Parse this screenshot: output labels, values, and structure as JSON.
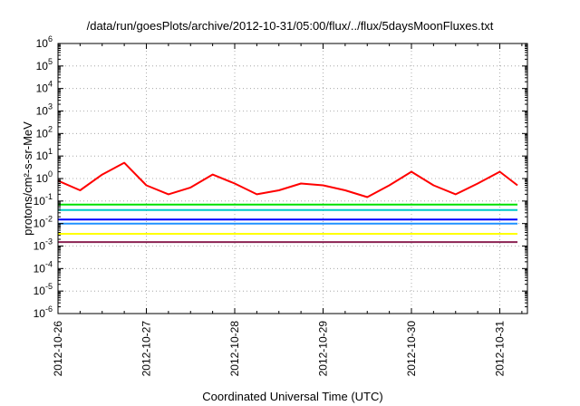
{
  "chart_data": {
    "type": "line",
    "title": "/data/run/goesPlots/archive/2012-10-31/05:00/flux/../flux/5daysMoonFluxes.txt",
    "xlabel": "Coordinated Universal Time (UTC)",
    "ylabel": "protons/cm²-s-sr-MeV",
    "x_tick_labels": [
      "2012-10-26",
      "2012-10-27",
      "2012-10-28",
      "2012-10-29",
      "2012-10-30",
      "2012-10-31"
    ],
    "y_tick_labels": [
      {
        "base": "10",
        "exp": "-6"
      },
      {
        "base": "10",
        "exp": "-5"
      },
      {
        "base": "10",
        "exp": "-4"
      },
      {
        "base": "10",
        "exp": "-3"
      },
      {
        "base": "10",
        "exp": "-2"
      },
      {
        "base": "10",
        "exp": "-1"
      },
      {
        "base": "10",
        "exp": "0"
      },
      {
        "base": "10",
        "exp": "1"
      },
      {
        "base": "10",
        "exp": "2"
      },
      {
        "base": "10",
        "exp": "3"
      },
      {
        "base": "10",
        "exp": "4"
      },
      {
        "base": "10",
        "exp": "5"
      },
      {
        "base": "10",
        "exp": "6"
      }
    ],
    "x_range_days": [
      "2012-10-26 00:00",
      "2012-10-31 05:00"
    ],
    "y_scale": "log",
    "ylim": [
      1e-06,
      1000000.0
    ],
    "grid": true,
    "legend": "none",
    "x_unit": "days since 2012-10-26 00:00 UTC",
    "series": [
      {
        "color": "#ff0000",
        "x": [
          0,
          0.25,
          0.5,
          0.75,
          1,
          1.25,
          1.5,
          1.75,
          2,
          2.25,
          2.5,
          2.75,
          3,
          3.25,
          3.5,
          3.75,
          4,
          4.25,
          4.5,
          4.75,
          5,
          5.2
        ],
        "y": [
          0.8,
          0.3,
          1.5,
          5,
          0.5,
          0.2,
          0.4,
          1.5,
          0.6,
          0.2,
          0.3,
          0.6,
          0.5,
          0.3,
          0.15,
          0.5,
          2,
          0.5,
          0.2,
          0.6,
          2,
          0.5
        ]
      },
      {
        "color": "#00e000",
        "x": [
          0,
          0.5,
          1,
          1.5,
          2,
          2.5,
          3,
          3.5,
          4,
          4.5,
          5,
          5.2
        ],
        "y": [
          0.07,
          0.07,
          0.07,
          0.07,
          0.07,
          0.07,
          0.07,
          0.07,
          0.07,
          0.07,
          0.07,
          0.07
        ]
      },
      {
        "color": "#00c8c8",
        "x": [
          0,
          0.5,
          1,
          1.5,
          2,
          2.5,
          3,
          3.5,
          4,
          4.5,
          5,
          5.2
        ],
        "y": [
          0.04,
          0.04,
          0.04,
          0.04,
          0.04,
          0.04,
          0.04,
          0.04,
          0.04,
          0.04,
          0.04,
          0.04
        ]
      },
      {
        "color": "#0000ff",
        "x": [
          0,
          0.5,
          1,
          1.5,
          2,
          2.5,
          3,
          3.5,
          4,
          4.5,
          5,
          5.2
        ],
        "y": [
          0.015,
          0.015,
          0.015,
          0.015,
          0.015,
          0.015,
          0.015,
          0.015,
          0.015,
          0.015,
          0.015,
          0.015
        ]
      },
      {
        "color": "#1e90ff",
        "x": [
          0,
          0.5,
          1,
          1.5,
          2,
          2.5,
          3,
          3.5,
          4,
          4.5,
          5,
          5.2
        ],
        "y": [
          0.01,
          0.01,
          0.01,
          0.01,
          0.01,
          0.01,
          0.01,
          0.01,
          0.01,
          0.01,
          0.01,
          0.01
        ]
      },
      {
        "color": "#ffff00",
        "x": [
          0,
          0.5,
          1,
          1.5,
          2,
          2.5,
          3,
          3.5,
          4,
          4.5,
          5,
          5.2
        ],
        "y": [
          0.0035,
          0.0035,
          0.0035,
          0.0035,
          0.0035,
          0.0035,
          0.0035,
          0.0035,
          0.0035,
          0.0035,
          0.0035,
          0.0035
        ]
      },
      {
        "color": "#8b2252",
        "x": [
          0,
          0.5,
          1,
          1.5,
          2,
          2.5,
          3,
          3.5,
          4,
          4.5,
          5,
          5.2
        ],
        "y": [
          0.0015,
          0.0015,
          0.0015,
          0.0015,
          0.0015,
          0.0015,
          0.0015,
          0.0015,
          0.0015,
          0.0015,
          0.0015,
          0.0015
        ]
      }
    ]
  }
}
